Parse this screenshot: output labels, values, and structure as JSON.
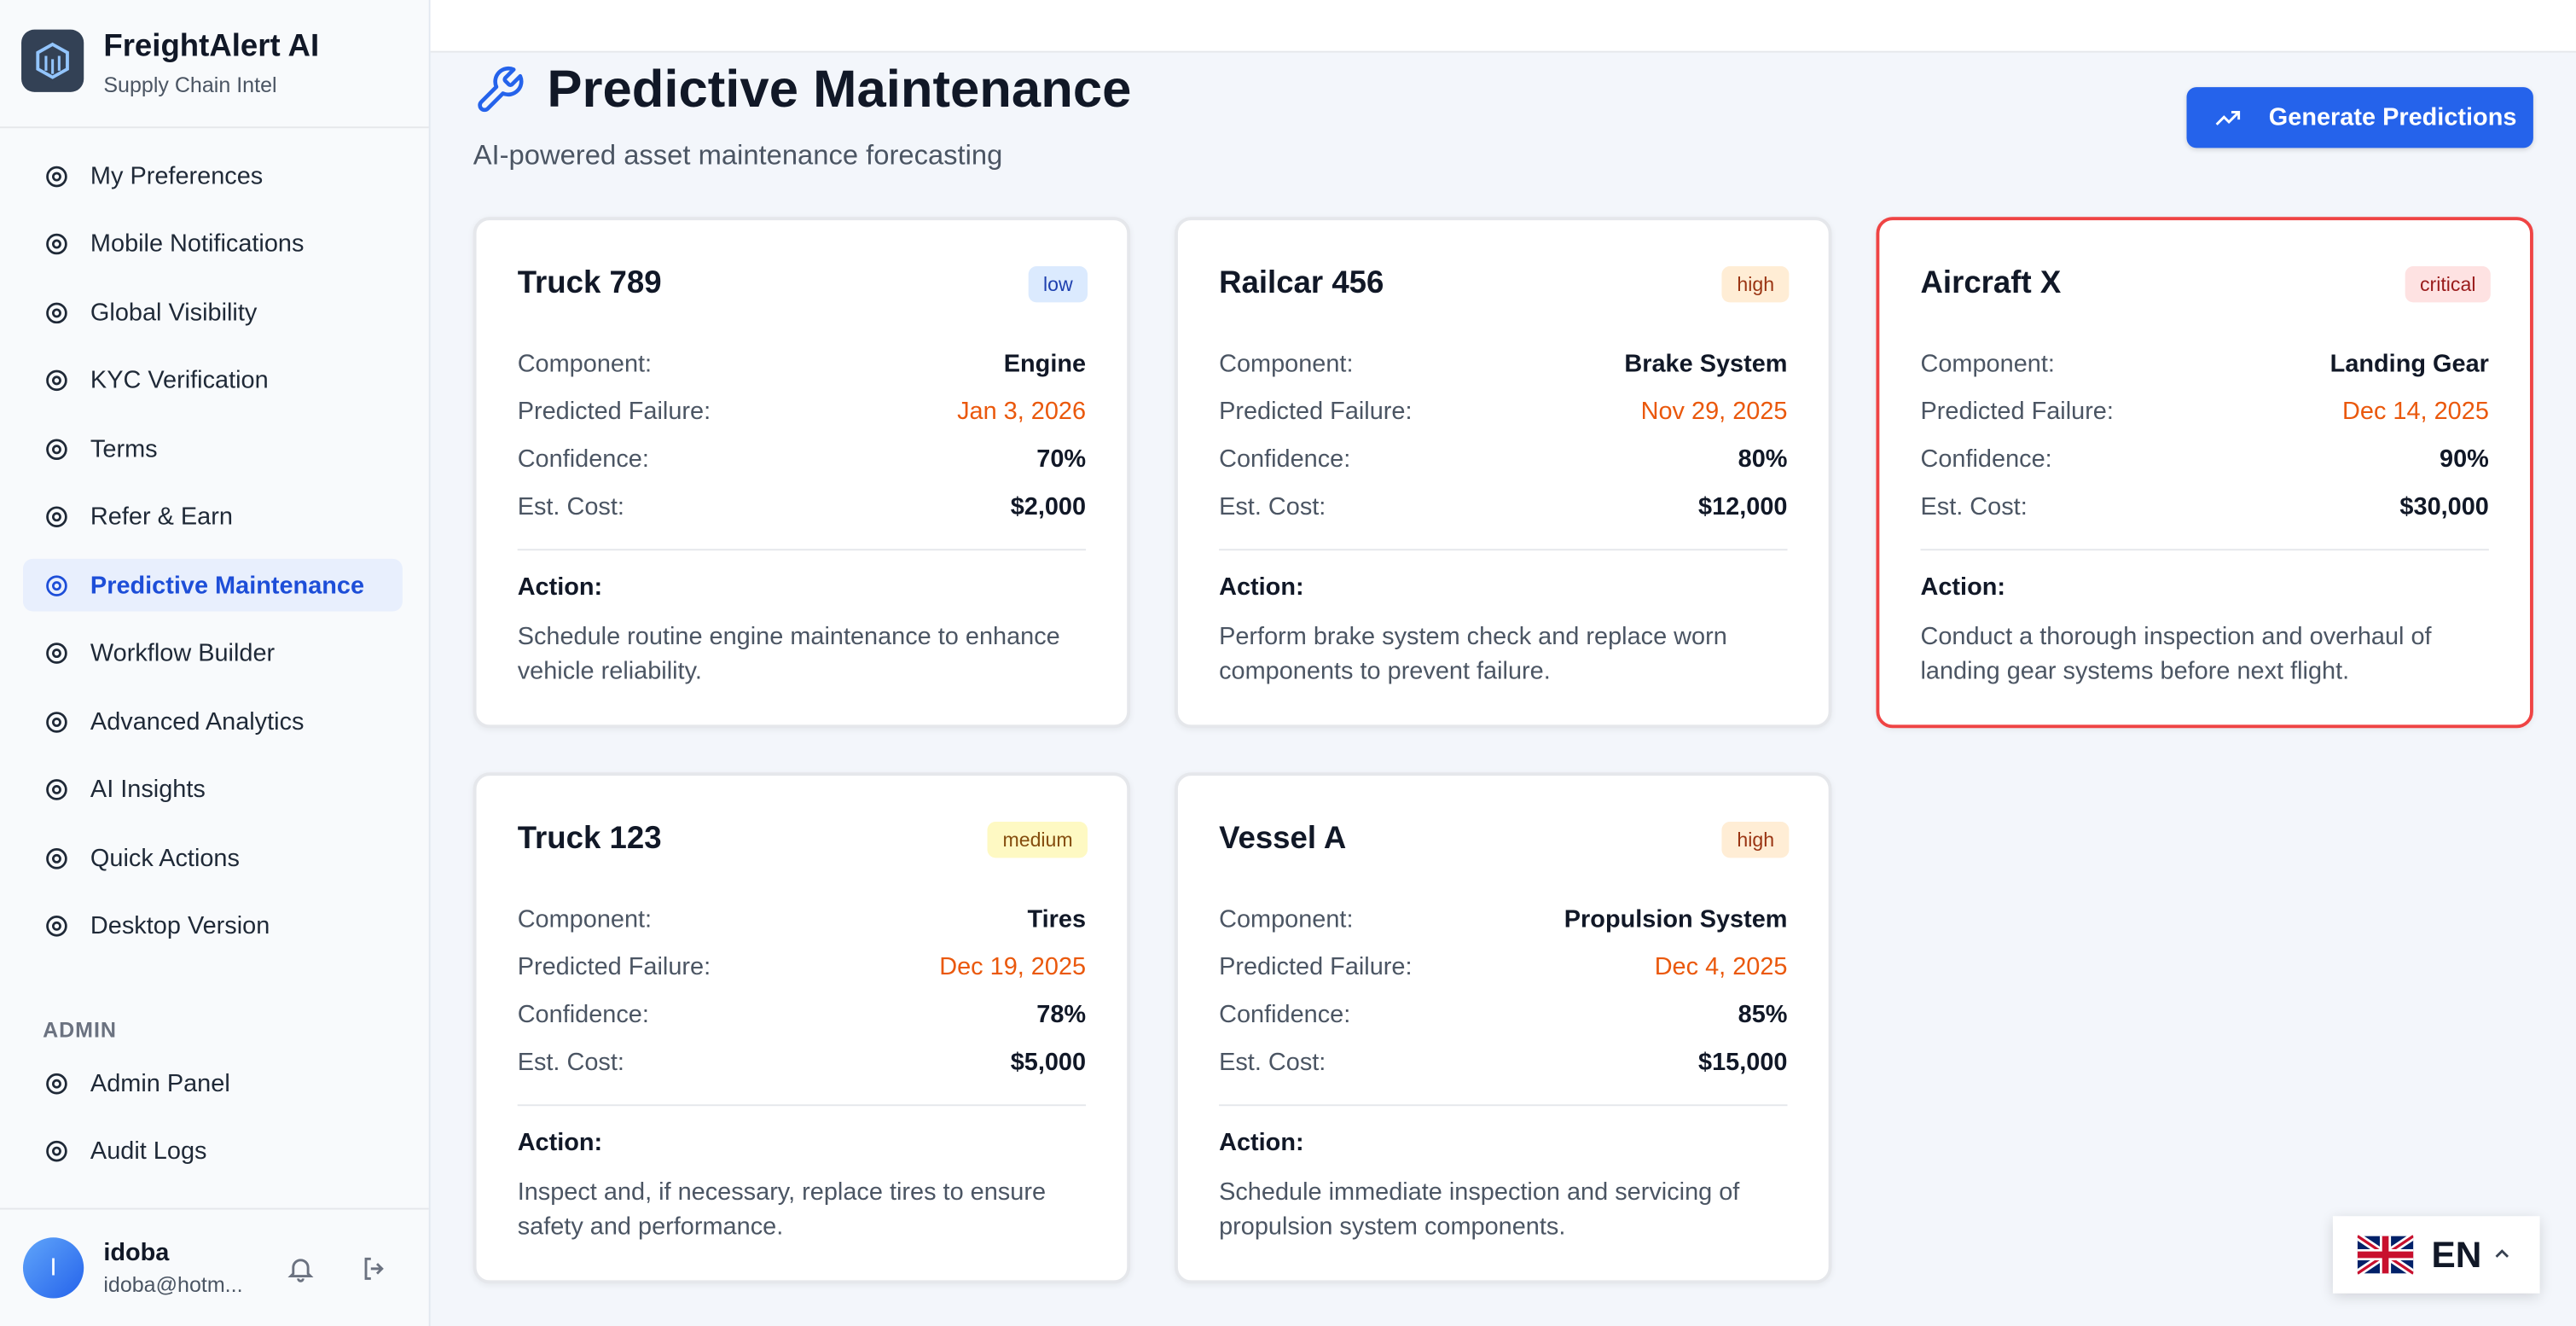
{
  "sidebar": {
    "brand": {
      "title": "FreightAlert AI",
      "subtitle": "Supply Chain Intel"
    },
    "nav": [
      "My Preferences",
      "Mobile Notifications",
      "Global Visibility",
      "KYC Verification",
      "Terms",
      "Refer & Earn",
      "Predictive Maintenance",
      "Workflow Builder",
      "Advanced Analytics",
      "AI Insights",
      "Quick Actions",
      "Desktop Version"
    ],
    "admin": {
      "label": "ADMIN",
      "items": [
        "Admin Panel",
        "Audit Logs"
      ]
    },
    "user": {
      "initial": "I",
      "name": "idoba",
      "email": "idoba@hotm..."
    }
  },
  "header": {
    "title": "Predictive Maintenance",
    "subtitle": "AI-powered asset maintenance forecasting",
    "button": "Generate Predictions"
  },
  "labels": {
    "component": "Component:",
    "predicted_failure": "Predicted Failure:",
    "confidence": "Confidence:",
    "est_cost": "Est. Cost:",
    "action": "Action:"
  },
  "cards": [
    {
      "name": "Truck 789",
      "severity": "low",
      "component": "Engine",
      "predicted_failure": "Jan 3, 2026",
      "confidence": "70%",
      "est_cost": "$2,000",
      "action": "Schedule routine engine maintenance to enhance vehicle reliability."
    },
    {
      "name": "Railcar 456",
      "severity": "high",
      "component": "Brake System",
      "predicted_failure": "Nov 29, 2025",
      "confidence": "80%",
      "est_cost": "$12,000",
      "action": "Perform brake system check and replace worn components to prevent failure."
    },
    {
      "name": "Aircraft X",
      "severity": "critical",
      "component": "Landing Gear",
      "predicted_failure": "Dec 14, 2025",
      "confidence": "90%",
      "est_cost": "$30,000",
      "action": "Conduct a thorough inspection and overhaul of landing gear systems before next flight."
    },
    {
      "name": "Truck 123",
      "severity": "medium",
      "component": "Tires",
      "predicted_failure": "Dec 19, 2025",
      "confidence": "78%",
      "est_cost": "$5,000",
      "action": "Inspect and, if necessary, replace tires to ensure safety and performance."
    },
    {
      "name": "Vessel A",
      "severity": "high",
      "component": "Propulsion System",
      "predicted_failure": "Dec 4, 2025",
      "confidence": "85%",
      "est_cost": "$15,000",
      "action": "Schedule immediate inspection and servicing of propulsion system components."
    }
  ],
  "language": "EN"
}
